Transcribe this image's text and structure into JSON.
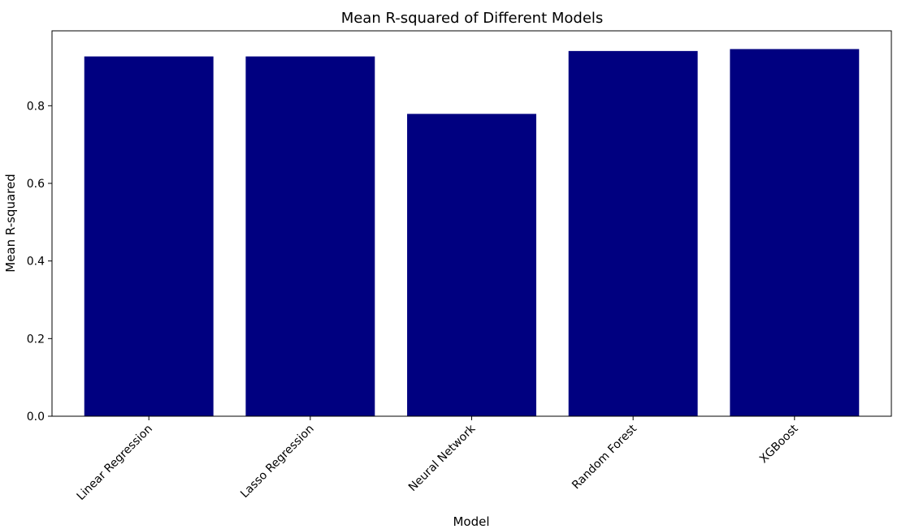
{
  "chart_data": {
    "type": "bar",
    "title": "Mean R-squared of Different Models",
    "xlabel": "Model",
    "ylabel": "Mean R-squared",
    "categories": [
      "Linear Regression",
      "Lasso Regression",
      "Neural Network",
      "Random Forest",
      "XGBoost"
    ],
    "values": [
      0.927,
      0.927,
      0.779,
      0.941,
      0.946
    ],
    "ylim": [
      0,
      0.993
    ],
    "yticks": [
      0.0,
      0.2,
      0.4,
      0.6,
      0.8
    ],
    "ytick_labels": [
      "0.0",
      "0.2",
      "0.4",
      "0.6",
      "0.8"
    ],
    "bar_color": "#000080",
    "grid": false,
    "xtick_rotation": 45
  }
}
